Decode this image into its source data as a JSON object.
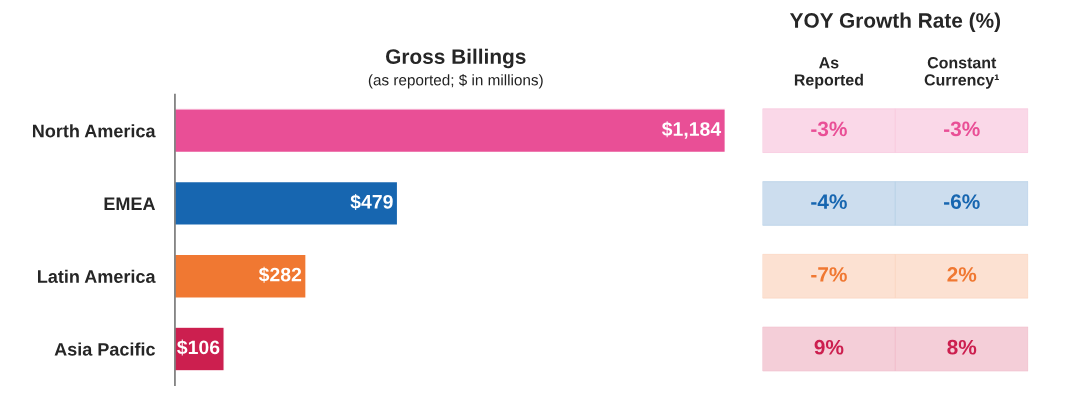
{
  "chart_data": [
    {
      "type": "bar",
      "orientation": "horizontal",
      "title": "Gross Billings",
      "subtitle": "(as reported; $ in millions)",
      "categories": [
        "North America",
        "EMEA",
        "Latin America",
        "Asia Pacific"
      ],
      "values": [
        1184,
        479,
        282,
        106
      ],
      "colors": [
        "#e94f96",
        "#1766b0",
        "#f07832",
        "#cc1f4f"
      ],
      "value_labels": [
        "$1,184",
        "$479",
        "$282",
        "$106"
      ]
    },
    {
      "type": "heatmap",
      "title": "YOY Growth Rate (%)",
      "categories": [
        "As\nReported",
        "Constant\nCurrency¹"
      ],
      "y_categories": [
        null,
        null,
        null,
        null
      ],
      "cells": [
        [
          -3,
          -3
        ],
        [
          -4,
          -6
        ],
        [
          -7,
          2
        ],
        [
          9,
          8
        ]
      ],
      "cell_labels": [
        [
          "-3%",
          "-3%"
        ],
        [
          "-4%",
          "-6%"
        ],
        [
          "-7%",
          "2%"
        ],
        [
          "9%",
          "8%"
        ]
      ],
      "colors": [
        "#e94f96",
        "#1766b0",
        "#f07832",
        "#cc1f4f"
      ],
      "tick_labels": "x"
    }
  ]
}
